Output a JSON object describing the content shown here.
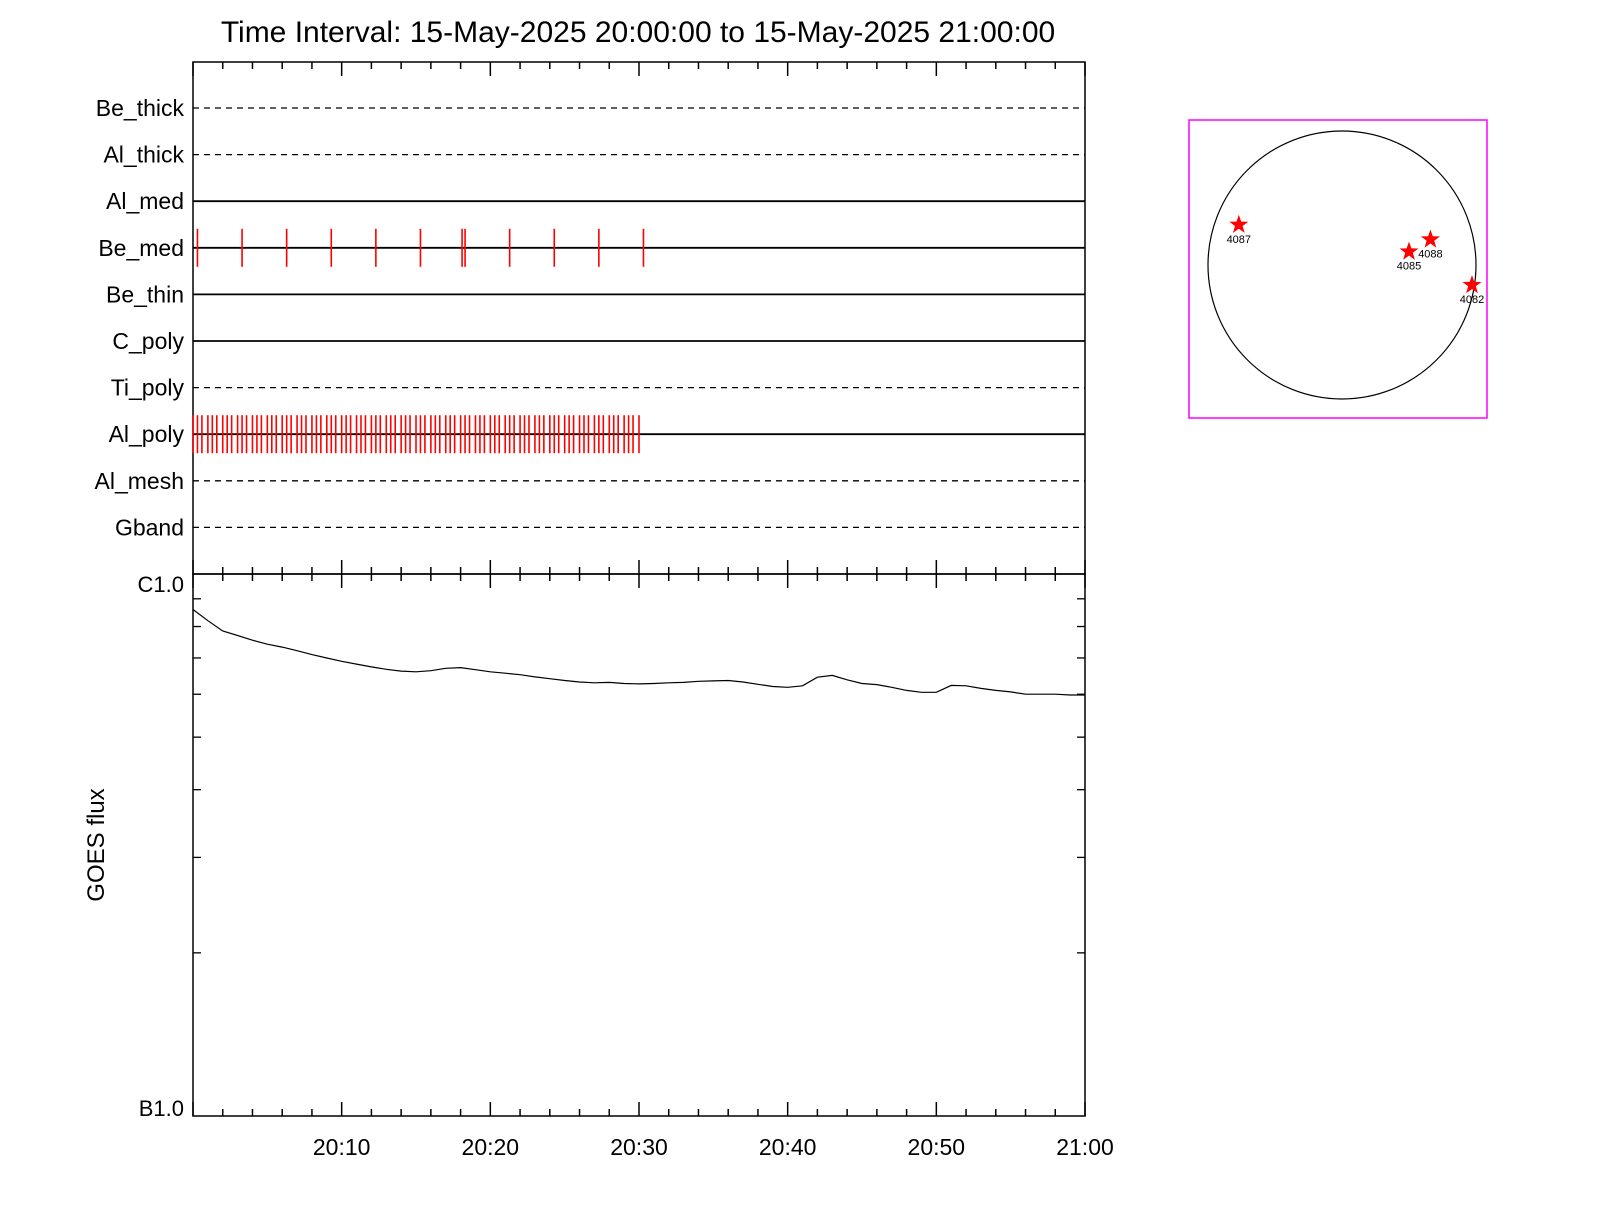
{
  "chart_data": [
    {
      "type": "timeline",
      "title": "Time Interval: 15-May-2025 20:00:00 to 15-May-2025 21:00:00",
      "x_range_minutes": [
        0,
        60
      ],
      "channels": [
        {
          "name": "Be_thick",
          "line": "dashed",
          "events": []
        },
        {
          "name": "Al_thick",
          "line": "dashed",
          "events": []
        },
        {
          "name": "Al_med",
          "line": "solid",
          "events": []
        },
        {
          "name": "Be_med",
          "line": "solid",
          "events": [
            0.3,
            3.3,
            6.3,
            9.3,
            12.3,
            15.3,
            18.1,
            18.3,
            21.3,
            24.3,
            27.3,
            30.3
          ]
        },
        {
          "name": "Be_thin",
          "line": "solid",
          "events": []
        },
        {
          "name": "C_poly",
          "line": "solid",
          "events": []
        },
        {
          "name": "Ti_poly",
          "line": "dashed",
          "events": []
        },
        {
          "name": "Al_poly",
          "line": "solid",
          "events": [
            0.0,
            0.3,
            0.6,
            1.0,
            1.3,
            1.6,
            2.0,
            2.3,
            2.6,
            3.0,
            3.3,
            3.6,
            4.0,
            4.3,
            4.6,
            5.0,
            5.3,
            5.6,
            6.0,
            6.3,
            6.6,
            7.0,
            7.3,
            7.6,
            8.0,
            8.3,
            8.6,
            9.0,
            9.3,
            9.6,
            10.0,
            10.3,
            10.6,
            11.0,
            11.3,
            11.6,
            12.0,
            12.3,
            12.6,
            13.0,
            13.3,
            13.6,
            14.0,
            14.3,
            14.6,
            15.0,
            15.3,
            15.6,
            16.0,
            16.3,
            16.6,
            17.0,
            17.3,
            17.6,
            18.0,
            18.3,
            18.6,
            19.0,
            19.3,
            19.6,
            20.0,
            20.3,
            20.6,
            21.0,
            21.3,
            21.6,
            22.0,
            22.3,
            22.6,
            23.0,
            23.3,
            23.6,
            24.0,
            24.3,
            24.6,
            25.0,
            25.3,
            25.6,
            26.0,
            26.3,
            26.6,
            27.0,
            27.3,
            27.6,
            28.0,
            28.3,
            28.6,
            29.0,
            29.3,
            29.6,
            30.0
          ]
        },
        {
          "name": "Al_mesh",
          "line": "dashed",
          "events": []
        },
        {
          "name": "Gband",
          "line": "dashed",
          "events": []
        }
      ],
      "event_color": "#ff0000"
    },
    {
      "type": "line",
      "ylabel": "GOES flux",
      "y_scale": "log",
      "y_tick_labels": [
        "C1.0",
        "B1.0"
      ],
      "ylim": [
        1e-07,
        1e-06
      ],
      "x_range_minutes": [
        0,
        60
      ],
      "x_tick_labels": [
        "20:10",
        "20:20",
        "20:30",
        "20:40",
        "20:50",
        "21:00"
      ],
      "x_tick_values": [
        10,
        20,
        30,
        40,
        50,
        60
      ],
      "series": [
        {
          "x": [
            0,
            1,
            2,
            3,
            4,
            5,
            6,
            7,
            8,
            9,
            10,
            11,
            12,
            13,
            14,
            15,
            16,
            17,
            18,
            19,
            20,
            21,
            22,
            23,
            24,
            25,
            26,
            27,
            28,
            29,
            30,
            31,
            32,
            33,
            34,
            35,
            36,
            37,
            38,
            39,
            40,
            41,
            42,
            43,
            44,
            45,
            46,
            47,
            48,
            49,
            50,
            51,
            52,
            53,
            54,
            55,
            56,
            57,
            58,
            59,
            60
          ],
          "y": [
            8.6e-07,
            8.2e-07,
            7.85e-07,
            7.7e-07,
            7.55e-07,
            7.42e-07,
            7.33e-07,
            7.22e-07,
            7.1e-07,
            7e-07,
            6.9e-07,
            6.82e-07,
            6.74e-07,
            6.67e-07,
            6.62e-07,
            6.6e-07,
            6.63e-07,
            6.7e-07,
            6.72e-07,
            6.66e-07,
            6.6e-07,
            6.56e-07,
            6.52e-07,
            6.46e-07,
            6.41e-07,
            6.36e-07,
            6.32e-07,
            6.3e-07,
            6.31e-07,
            6.28e-07,
            6.27e-07,
            6.28e-07,
            6.3e-07,
            6.31e-07,
            6.34e-07,
            6.35e-07,
            6.36e-07,
            6.32e-07,
            6.26e-07,
            6.2e-07,
            6.18e-07,
            6.22e-07,
            6.45e-07,
            6.5e-07,
            6.38e-07,
            6.28e-07,
            6.25e-07,
            6.18e-07,
            6.1e-07,
            6.05e-07,
            6.05e-07,
            6.23e-07,
            6.22e-07,
            6.15e-07,
            6.1e-07,
            6.06e-07,
            6e-07,
            6e-07,
            6e-07,
            5.98e-07,
            5.98e-07
          ]
        }
      ]
    },
    {
      "type": "scatter",
      "description_kind": "solar-disk",
      "frame_color": "#ff00ff",
      "marker_color": "#ff0000",
      "disk_extent": [
        -1,
        1
      ],
      "points": [
        {
          "label": "4087",
          "x": -0.77,
          "y": 0.3
        },
        {
          "label": "4085",
          "x": 0.5,
          "y": 0.1
        },
        {
          "label": "4088",
          "x": 0.66,
          "y": 0.19
        },
        {
          "label": "4082",
          "x": 0.97,
          "y": -0.15
        }
      ]
    }
  ]
}
